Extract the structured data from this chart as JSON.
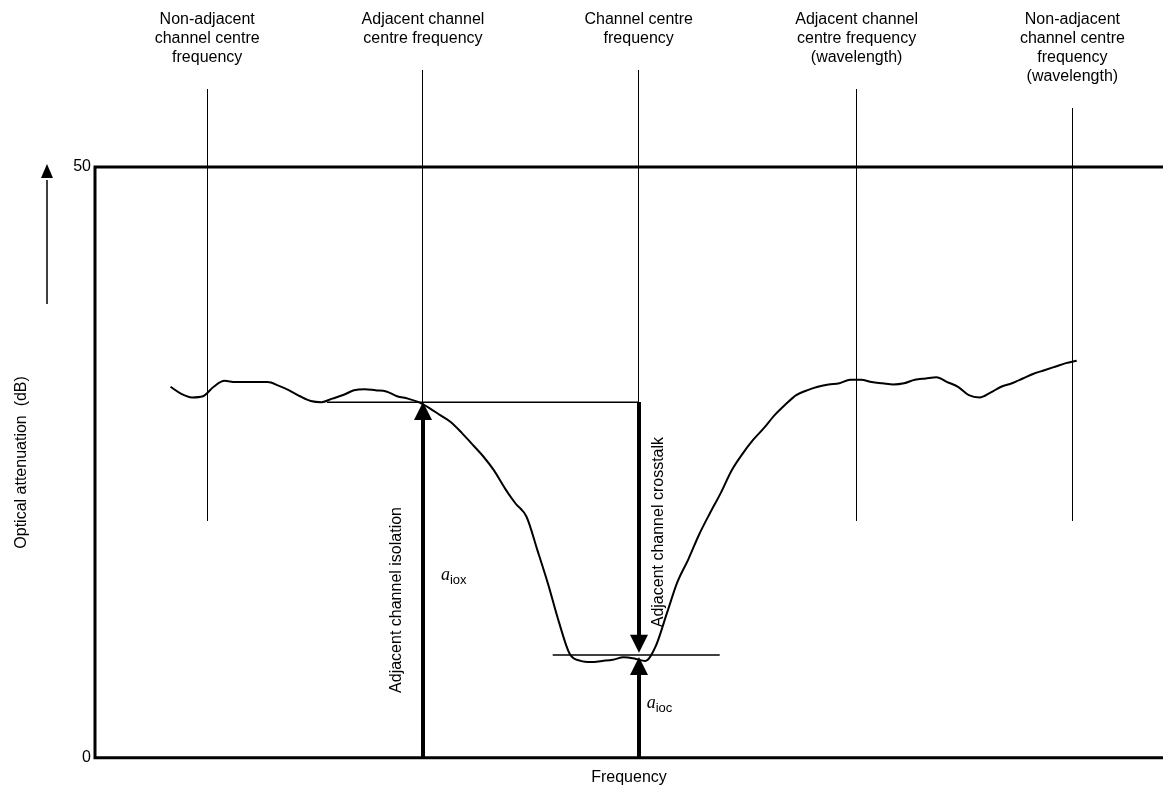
{
  "chart_data": {
    "type": "line",
    "xlabel": "Frequency",
    "ylabel": "Optical attenuation  (dB)",
    "categories": [
      null,
      null,
      null,
      null,
      null,
      null,
      null,
      null,
      null,
      null,
      null,
      null,
      null,
      null,
      null,
      null,
      null,
      null,
      null,
      null,
      null,
      null,
      null,
      null,
      null,
      null,
      null,
      null,
      null,
      null,
      null,
      null,
      null,
      null,
      null,
      null,
      null,
      null,
      null,
      null,
      null,
      null,
      null,
      null,
      null,
      null,
      null,
      null,
      null,
      null,
      null,
      null,
      null,
      null,
      null,
      null,
      null,
      null,
      null,
      null,
      null,
      null,
      null,
      null,
      null,
      null,
      null,
      null,
      null,
      null,
      null,
      null,
      null,
      null,
      null,
      null,
      null,
      null,
      null,
      null,
      null,
      null,
      null,
      null,
      null,
      null,
      null,
      null,
      null,
      null,
      null,
      null,
      null,
      null,
      null,
      null,
      null,
      null,
      null,
      null
    ],
    "series": [
      {
        "color": "#000000",
        "values": [
          null,
          null,
          null,
          null,
          null,
          null,
          null,
          31.4,
          30.8,
          30.5,
          30.6,
          31.4,
          31.9,
          31.8,
          31.8,
          31.8,
          31.8,
          31.5,
          31.1,
          30.6,
          30.2,
          30.1,
          30.4,
          30.7,
          31.1,
          31.2,
          31.1,
          31.0,
          30.6,
          30.4,
          30.1,
          29.6,
          29.0,
          28.4,
          27.5,
          26.5,
          25.5,
          24.3,
          22.8,
          21.5,
          20.4,
          17.6,
          14.7,
          11.5,
          8.8,
          8.2,
          8.1,
          8.2,
          8.3,
          8.5,
          8.4,
          8.2,
          9.5,
          12.2,
          14.9,
          16.8,
          18.9,
          20.7,
          22.4,
          24.3,
          25.7,
          26.9,
          27.9,
          29.0,
          29.9,
          30.7,
          31.1,
          31.4,
          31.6,
          31.7,
          32.0,
          32.0,
          31.8,
          31.7,
          31.6,
          31.7,
          32.0,
          32.1,
          32.2,
          31.8,
          31.4,
          30.7,
          30.5,
          30.9,
          31.4,
          31.7,
          32.1,
          32.5,
          32.8,
          33.1,
          33.4,
          33.6,
          null,
          null,
          null,
          null,
          null,
          null,
          null,
          null
        ]
      }
    ],
    "ylim": [
      0,
      50
    ],
    "yticks": [
      0,
      50
    ],
    "grid": false,
    "legend": false,
    "marker": "none",
    "line_style": "solid",
    "ref_lines": [
      {
        "axis": "y",
        "value": 30.1
      },
      {
        "axis": "y",
        "value": 8.7
      }
    ],
    "annotations": [
      "Non-adjacent channel centre frequency",
      "Adjacent channel centre frequency",
      "Channel centre frequency",
      "Adjacent channel centre frequency (wavelength)",
      "Non-adjacent channel centre frequency (wavelength)",
      "Adjacent channel isolation",
      "a$_{iox}$",
      "Adjacent channel crosstalk",
      "a$_{ioc}$"
    ]
  }
}
